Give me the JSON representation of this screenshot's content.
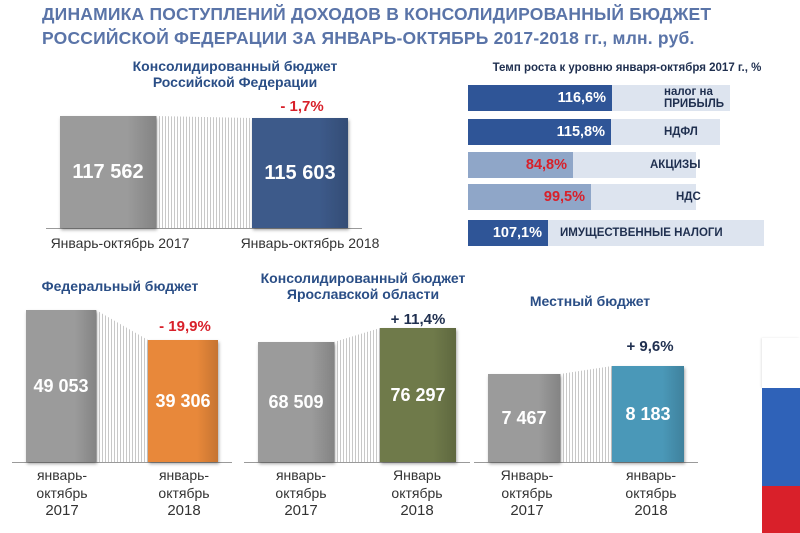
{
  "title": {
    "line1": "ДИНАМИКА ПОСТУПЛЕНИЙ ДОХОДОВ В КОНСОЛИДИРОВАННЫЙ БЮДЖЕТ",
    "line2": "РОССИЙСКОЙ ФЕДЕРАЦИИ ЗА ЯНВАРЬ-ОКТЯБРЬ    2017-2018 гг., млн. руб."
  },
  "colors": {
    "gray": "#9b9b9b",
    "navy": "#3d5a8a",
    "orange": "#e8883a",
    "olive": "#6f7a4a",
    "teal": "#4a98b8",
    "hbar_dark": "#2f5597",
    "hbar_light": "#8fa6c8"
  },
  "chart_data": [
    {
      "type": "bar",
      "title": "Консолидированный бюджет Российской Федерации",
      "categories": [
        "Январь-октябрь 2017",
        "Январь-октябрь 2018"
      ],
      "values": [
        117562,
        115603
      ],
      "value_labels": [
        "117 562",
        "115 603"
      ],
      "change_label": "- 1,7%"
    },
    {
      "type": "bar",
      "title": "Федеральный  бюджет",
      "categories": [
        "январь-октябрь 2017",
        "январь-октябрь 2018"
      ],
      "category_lines": [
        [
          "январь-",
          "октябрь",
          "2017"
        ],
        [
          "январь-",
          "октябрь",
          "2018"
        ]
      ],
      "values": [
        49053,
        39306
      ],
      "value_labels": [
        "49 053",
        "39 306"
      ],
      "change_label": "- 19,9%"
    },
    {
      "type": "bar",
      "title": "Консолидированный бюджет Ярославской области",
      "categories": [
        "январь-октябрь 2017",
        "Январь октябрь 2018"
      ],
      "category_lines": [
        [
          "январь-",
          "октябрь",
          "2017"
        ],
        [
          "Январь",
          "октябрь",
          "2018"
        ]
      ],
      "values": [
        68509,
        76297
      ],
      "value_labels": [
        "68 509",
        "76 297"
      ],
      "change_label": "+ 11,4%"
    },
    {
      "type": "bar",
      "title": "Местный бюджет",
      "categories": [
        "Январь-октябрь 2017",
        "январь-октябрь 2018"
      ],
      "category_lines": [
        [
          "Январь-",
          "октябрь",
          "2017"
        ],
        [
          "январь-",
          "октябрь",
          "2018"
        ]
      ],
      "values": [
        7467,
        8183
      ],
      "value_labels": [
        "7 467",
        "8 183"
      ],
      "change_label": "+ 9,6%"
    },
    {
      "type": "bar",
      "orientation": "horizontal",
      "title": "Темп роста к уровню января-октября 2017 г., %",
      "categories": [
        "налог на ПРИБЫЛЬ",
        "НДФЛ",
        "АКЦИЗЫ",
        "НДС",
        "ИМУЩЕСТВЕННЫЕ НАЛОГИ"
      ],
      "values": [
        116.6,
        115.8,
        84.8,
        99.5,
        107.1
      ],
      "value_labels": [
        "116,6%",
        "115,8%",
        "84,8%",
        "99,5%",
        "107,1%"
      ]
    }
  ]
}
